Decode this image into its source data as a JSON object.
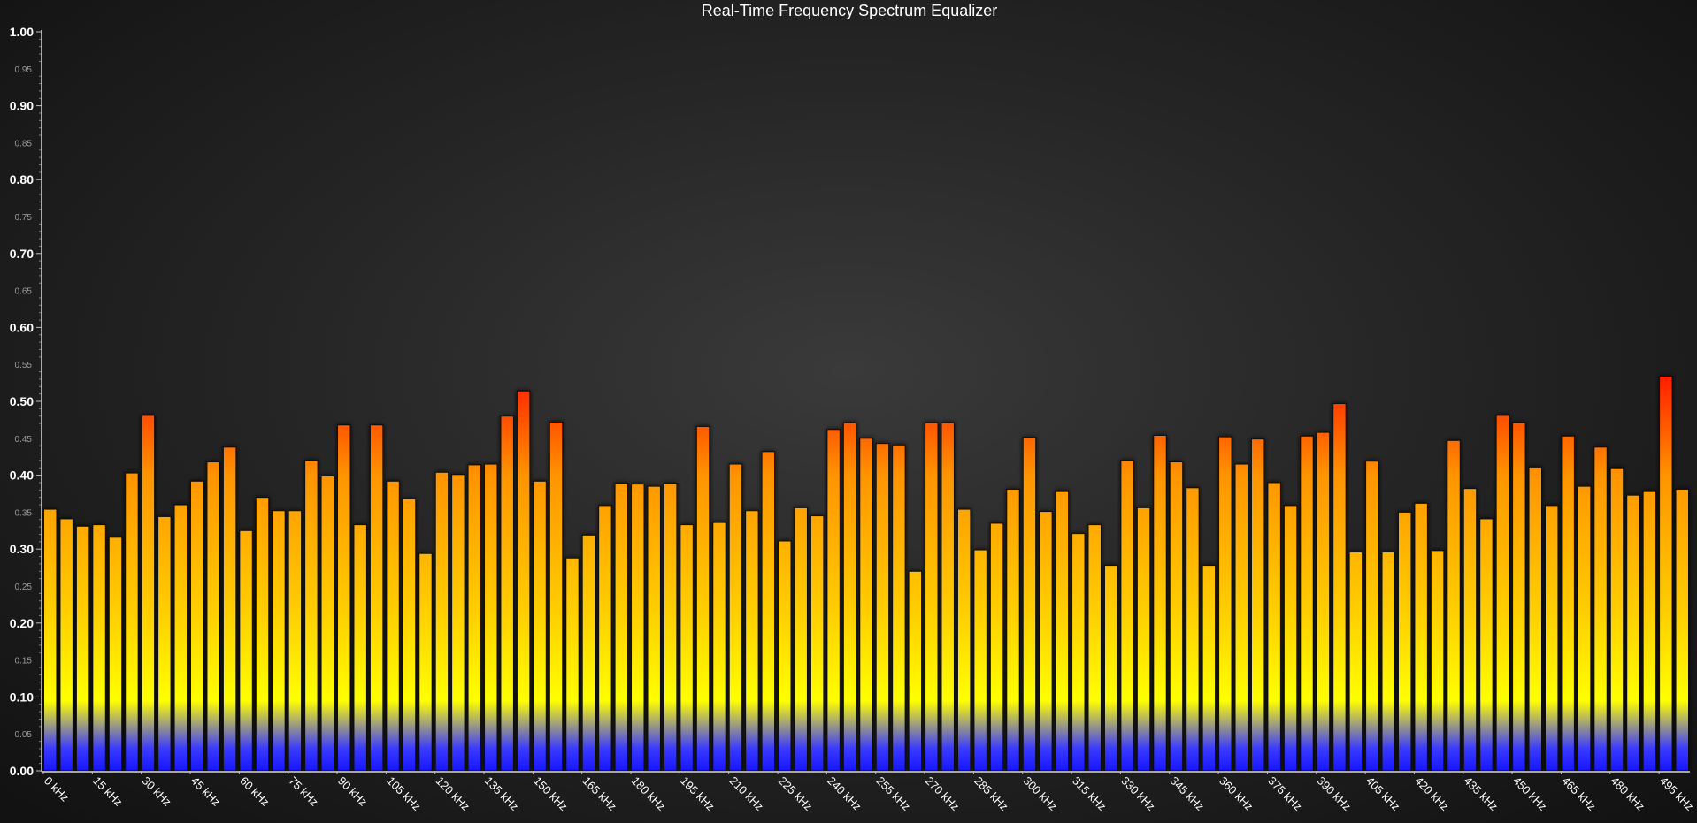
{
  "chart_data": {
    "type": "bar",
    "title": "Real-Time Frequency Spectrum Equalizer",
    "xlabel": "",
    "ylabel": "",
    "ylim": [
      0,
      1.0
    ],
    "y_major_ticks": [
      "0.00",
      "0.10",
      "0.20",
      "0.30",
      "0.40",
      "0.50",
      "0.60",
      "0.70",
      "0.80",
      "0.90",
      "1.00"
    ],
    "y_minor_ticks": [
      "0.05",
      "0.15",
      "0.25",
      "0.35",
      "0.45",
      "0.55",
      "0.65",
      "0.75",
      "0.85",
      "0.95"
    ],
    "x_tick_labels": [
      "0 kHz",
      "15 kHz",
      "30 kHz",
      "45 kHz",
      "60 kHz",
      "75 kHz",
      "90 kHz",
      "105 kHz",
      "120 kHz",
      "135 kHz",
      "150 kHz",
      "165 kHz",
      "180 kHz",
      "195 kHz",
      "210 kHz",
      "225 kHz",
      "240 kHz",
      "255 kHz",
      "270 kHz",
      "285 kHz",
      "300 kHz",
      "315 kHz",
      "330 kHz",
      "345 kHz",
      "360 kHz",
      "375 kHz",
      "390 kHz",
      "405 kHz",
      "420 kHz",
      "435 kHz",
      "450 kHz",
      "465 kHz",
      "480 kHz",
      "495 kHz"
    ],
    "x_step_khz": 5,
    "values": [
      0.354,
      0.341,
      0.331,
      0.333,
      0.316,
      0.403,
      0.481,
      0.344,
      0.36,
      0.392,
      0.418,
      0.438,
      0.325,
      0.37,
      0.352,
      0.352,
      0.42,
      0.399,
      0.468,
      0.333,
      0.468,
      0.392,
      0.368,
      0.294,
      0.404,
      0.401,
      0.414,
      0.415,
      0.48,
      0.514,
      0.392,
      0.472,
      0.288,
      0.319,
      0.359,
      0.389,
      0.388,
      0.385,
      0.389,
      0.333,
      0.466,
      0.336,
      0.415,
      0.352,
      0.432,
      0.311,
      0.356,
      0.345,
      0.462,
      0.471,
      0.45,
      0.443,
      0.441,
      0.27,
      0.471,
      0.471,
      0.354,
      0.299,
      0.335,
      0.381,
      0.451,
      0.351,
      0.379,
      0.321,
      0.333,
      0.278,
      0.42,
      0.356,
      0.454,
      0.418,
      0.383,
      0.278,
      0.452,
      0.415,
      0.449,
      0.39,
      0.359,
      0.453,
      0.458,
      0.497,
      0.296,
      0.419,
      0.296,
      0.35,
      0.362,
      0.298,
      0.447,
      0.382,
      0.341,
      0.481,
      0.471,
      0.411,
      0.359,
      0.453,
      0.385,
      0.438,
      0.41,
      0.373,
      0.379,
      0.534,
      0.381
    ],
    "colors": {
      "low": "#1616ff",
      "mid": "#ffff00",
      "upper": "#ffa000",
      "high": "#ff1000",
      "axis": "#d8d8d8",
      "title": "#ffffff"
    }
  }
}
